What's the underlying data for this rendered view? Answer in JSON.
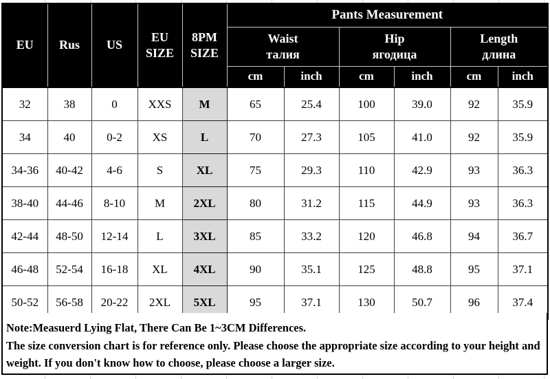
{
  "table": {
    "header": {
      "col_eu": "EU",
      "col_rus": "Rus",
      "col_us": "US",
      "col_eu_size": "EU\nSIZE",
      "col_8pm_size": "8PM\nSIZE",
      "pants_title": "Pants Measurement",
      "waist": "Waist\nталия",
      "hip": "Hip\nягодица",
      "length": "Length\nдлина",
      "unit_cm": "cm",
      "unit_inch": "inch"
    },
    "column_keys": [
      "eu",
      "rus",
      "us",
      "eu_size",
      "size_8pm",
      "waist_cm",
      "waist_inch",
      "hip_cm",
      "hip_inch",
      "length_cm",
      "length_inch"
    ],
    "highlight_column": "size_8pm",
    "rows": [
      [
        "32",
        "38",
        "0",
        "XXS",
        "M",
        "65",
        "25.4",
        "100",
        "39.0",
        "92",
        "35.9"
      ],
      [
        "34",
        "40",
        "0-2",
        "XS",
        "L",
        "70",
        "27.3",
        "105",
        "41.0",
        "92",
        "35.9"
      ],
      [
        "34-36",
        "40-42",
        "4-6",
        "S",
        "XL",
        "75",
        "29.3",
        "110",
        "42.9",
        "93",
        "36.3"
      ],
      [
        "38-40",
        "44-46",
        "8-10",
        "M",
        "2XL",
        "80",
        "31.2",
        "115",
        "44.9",
        "93",
        "36.3"
      ],
      [
        "42-44",
        "48-50",
        "12-14",
        "L",
        "3XL",
        "85",
        "33.2",
        "120",
        "46.8",
        "94",
        "36.7"
      ],
      [
        "46-48",
        "52-54",
        "16-18",
        "XL",
        "4XL",
        "90",
        "35.1",
        "125",
        "48.8",
        "95",
        "37.1"
      ],
      [
        "50-52",
        "56-58",
        "20-22",
        "2XL",
        "5XL",
        "95",
        "37.1",
        "130",
        "50.7",
        "96",
        "37.4"
      ]
    ]
  },
  "note": {
    "line1": "Note:Measuerd Lying Flat, There Can Be 1~3CM Differences.",
    "line2": "The size conversion chart is for reference only. Please choose the appropriate size according to your height and weight. If you don't know how to choose, please choose a larger size."
  },
  "colors": {
    "header_bg": "#000000",
    "header_text": "#ffffff",
    "highlight_bg": "#d9d9d9",
    "cell_border": "#3d3d3d",
    "gridline": "#d6d6d6"
  }
}
